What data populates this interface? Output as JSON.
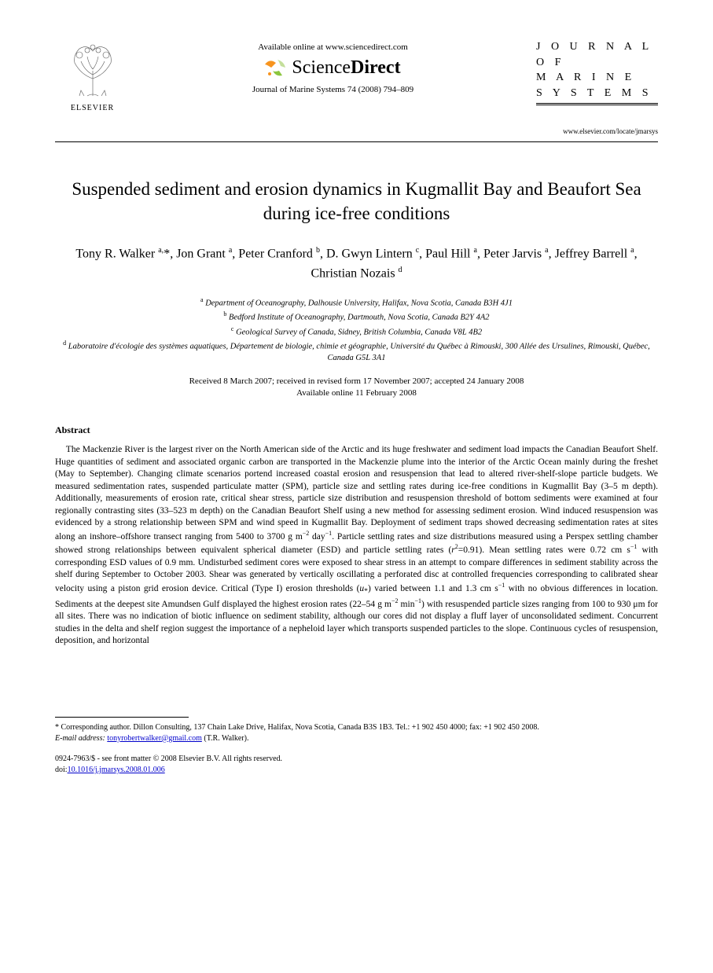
{
  "header": {
    "publisher_name": "ELSEVIER",
    "available_online": "Available online at www.sciencedirect.com",
    "sciencedirect_prefix": "Science",
    "sciencedirect_suffix": "Direct",
    "citation": "Journal of Marine Systems 74 (2008) 794–809",
    "journal_line1": "J O U R N A L   O F",
    "journal_line2": "M A R I N E",
    "journal_line3": "S Y S T E M S",
    "journal_url": "www.elsevier.com/locate/jmarsys"
  },
  "article": {
    "title": "Suspended sediment and erosion dynamics in Kugmallit Bay and Beaufort Sea during ice-free conditions",
    "authors_html": "Tony R. Walker <sup>a,</sup>*, Jon Grant <sup>a</sup>, Peter Cranford <sup>b</sup>, D. Gwyn Lintern <sup>c</sup>, Paul Hill <sup>a</sup>, Peter Jarvis <sup>a</sup>, Jeffrey Barrell <sup>a</sup>, Christian Nozais <sup>d</sup>",
    "affiliations": {
      "a": "Department of Oceanography, Dalhousie University, Halifax, Nova Scotia, Canada B3H 4J1",
      "b": "Bedford Institute of Oceanography, Dartmouth, Nova Scotia, Canada B2Y 4A2",
      "c": "Geological Survey of Canada, Sidney, British Columbia, Canada V8L 4B2",
      "d": "Laboratoire d'écologie des systèmes aquatiques, Département de biologie, chimie et géographie, Université du Québec à Rimouski, 300 Allée des Ursulines, Rimouski, Québec, Canada G5L 3A1"
    },
    "dates_line1": "Received 8 March 2007; received in revised form 17 November 2007; accepted 24 January 2008",
    "dates_line2": "Available online 11 February 2008"
  },
  "abstract": {
    "heading": "Abstract",
    "body_html": "The Mackenzie River is the largest river on the North American side of the Arctic and its huge freshwater and sediment load impacts the Canadian Beaufort Shelf. Huge quantities of sediment and associated organic carbon are transported in the Mackenzie plume into the interior of the Arctic Ocean mainly during the freshet (May to September). Changing climate scenarios portend increased coastal erosion and resuspension that lead to altered river-shelf-slope particle budgets. We measured sedimentation rates, suspended particulate matter (SPM), particle size and settling rates during ice-free conditions in Kugmallit Bay (3–5 m depth). Additionally, measurements of erosion rate, critical shear stress, particle size distribution and resuspension threshold of bottom sediments were examined at four regionally contrasting sites (33–523 m depth) on the Canadian Beaufort Shelf using a new method for assessing sediment erosion. Wind induced resuspension was evidenced by a strong relationship between SPM and wind speed in Kugmallit Bay. Deployment of sediment traps showed decreasing sedimentation rates at sites along an inshore–offshore transect ranging from 5400 to 3700 g m<sup>−2</sup> day<sup>−1</sup>. Particle settling rates and size distributions measured using a Perspex settling chamber showed strong relationships between equivalent spherical diameter (ESD) and particle settling rates (<span class=\"ital\">r</span><sup>2</sup>=0.91). Mean settling rates were 0.72 cm s<sup>−1</sup> with corresponding ESD values of 0.9 mm. Undisturbed sediment cores were exposed to shear stress in an attempt to compare differences in sediment stability across the shelf during September to October 2003. Shear was generated by vertically oscillating a perforated disc at controlled frequencies corresponding to calibrated shear velocity using a piston grid erosion device. Critical (Type I) erosion thresholds (<span class=\"ital\">u</span><sub>*</sub>) varied between 1.1 and 1.3 cm s<sup>−1</sup> with no obvious differences in location. Sediments at the deepest site Amundsen Gulf displayed the highest erosion rates (22–54 g m<sup>−2</sup> min<sup>−1</sup>) with resuspended particle sizes ranging from 100 to 930 μm for all sites. There was no indication of biotic influence on sediment stability, although our cores did not display a fluff layer of unconsolidated sediment. Concurrent studies in the delta and shelf region suggest the importance of a nepheloid layer which transports suspended particles to the slope. Continuous cycles of resuspension, deposition, and horizontal"
  },
  "footer": {
    "corresponding": "* Corresponding author. Dillon Consulting, 137 Chain Lake Drive, Halifax, Nova Scotia, Canada B3S 1B3. Tel.: +1 902 450 4000; fax: +1 902 450 2008.",
    "email_label": "E-mail address:",
    "email": "tonyrobertwalker@gmail.com",
    "email_author": "(T.R. Walker).",
    "issn_line": "0924-7963/$ - see front matter © 2008 Elsevier B.V. All rights reserved.",
    "doi_label": "doi:",
    "doi": "10.1016/j.jmarsys.2008.01.006"
  },
  "colors": {
    "text": "#000000",
    "link": "#0000cc",
    "background": "#ffffff",
    "sd_orange": "#f7941e",
    "sd_green": "#8cc63f",
    "sd_lime": "#c4df9b"
  }
}
